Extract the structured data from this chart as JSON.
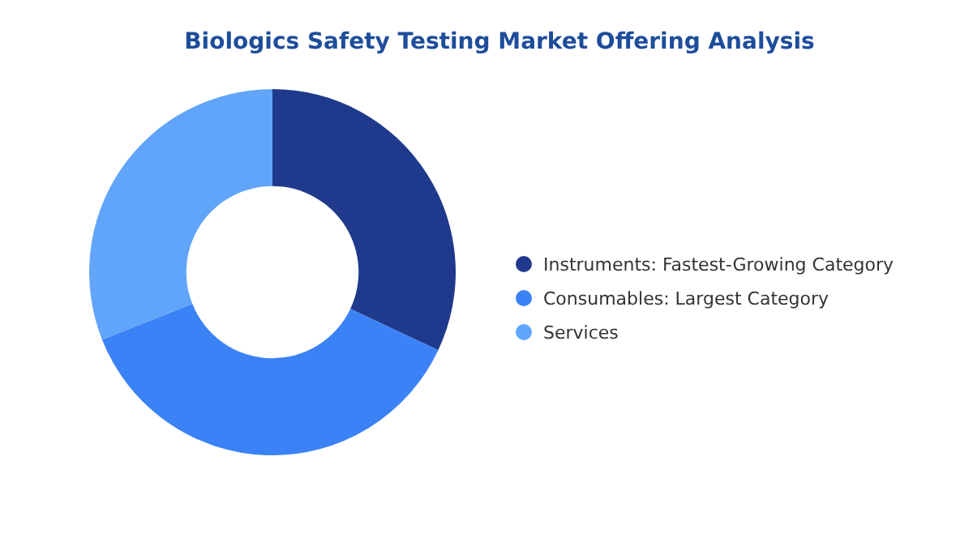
{
  "chart_data": {
    "type": "donut",
    "title": "Biologics Safety Testing Market Offering Analysis",
    "categories": [
      "Instruments:  Fastest-Growing Category",
      "Consumables:  Largest Category",
      "Services"
    ],
    "values": [
      32,
      37,
      31
    ],
    "colors": [
      "#1f3a8c",
      "#3b82f6",
      "#60a5fa"
    ],
    "legend": "right"
  }
}
